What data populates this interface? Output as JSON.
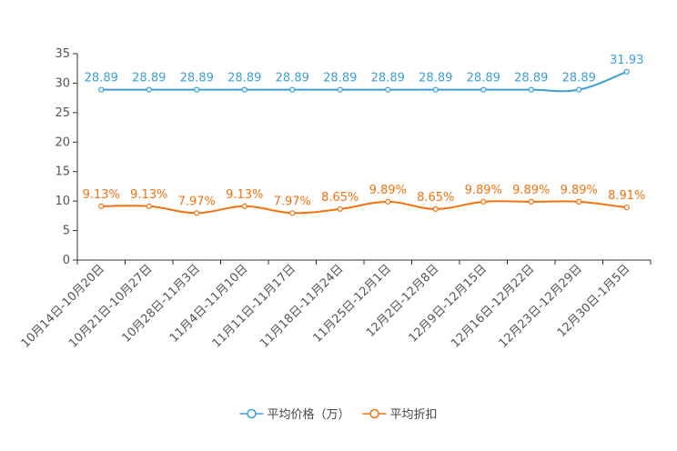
{
  "chart_data": {
    "type": "line",
    "title": "",
    "xlabel": "",
    "ylabel": "",
    "ylim": [
      0,
      35
    ],
    "yticks": [
      0,
      5,
      10,
      15,
      20,
      25,
      30,
      35
    ],
    "grid": false,
    "legend_position": "bottom-center",
    "categories": [
      "10月14日-10月20日",
      "10月21日-10月27日",
      "10月28日-11月3日",
      "11月4日-11月10日",
      "11月11日-11月17日",
      "11月18日-11月24日",
      "11月25日-12月1日",
      "12月2日-12月8日",
      "12月9日-12月15日",
      "12月16日-12月22日",
      "12月23日-12月29日",
      "12月30日-1月5日"
    ],
    "series": [
      {
        "name": "平均价格（万）",
        "color": "#3d9fd6",
        "values": [
          28.89,
          28.89,
          28.89,
          28.89,
          28.89,
          28.89,
          28.89,
          28.89,
          28.89,
          28.89,
          28.89,
          31.93
        ],
        "labels": [
          "28.89",
          "28.89",
          "28.89",
          "28.89",
          "28.89",
          "28.89",
          "28.89",
          "28.89",
          "28.89",
          "28.89",
          "28.89",
          "31.93"
        ]
      },
      {
        "name": "平均折扣",
        "color": "#f5720f",
        "values": [
          9.13,
          9.13,
          7.97,
          9.13,
          7.97,
          8.65,
          9.89,
          8.65,
          9.89,
          9.89,
          9.89,
          8.91
        ],
        "labels": [
          "9.13%",
          "9.13%",
          "7.97%",
          "9.13%",
          "7.97%",
          "8.65%",
          "9.89%",
          "8.65%",
          "9.89%",
          "9.89%",
          "9.89%",
          "8.91%"
        ]
      }
    ]
  }
}
